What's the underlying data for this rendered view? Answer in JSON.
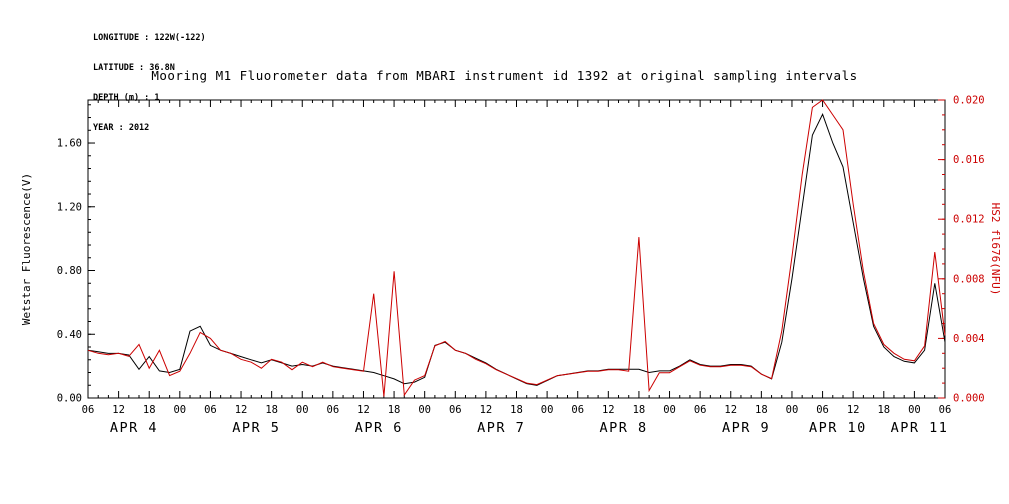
{
  "header": {
    "lines": [
      "LONGITUDE : 122W(-122)",
      "LATITUDE : 36.8N",
      "DEPTH (m) : 1",
      "YEAR : 2012"
    ]
  },
  "title": "Mooring M1 Fluorometer data from MBARI instrument id 1392 at original sampling intervals",
  "chart_data": {
    "type": "line",
    "title": "Mooring M1 Fluorometer data from MBARI instrument id 1392 at original sampling intervals",
    "x_unit": "hours since 2012-04-04 06:00",
    "x_range": [
      0,
      168
    ],
    "x_tick_step_hours": 6,
    "x_tick_labels": [
      "06",
      "12",
      "18",
      "00",
      "06",
      "12",
      "18",
      "00",
      "06",
      "12",
      "18",
      "00",
      "06",
      "12",
      "18",
      "00",
      "06",
      "12",
      "18",
      "00",
      "06",
      "12",
      "18",
      "00",
      "06",
      "12",
      "18",
      "00",
      "06"
    ],
    "day_labels": [
      {
        "label": "APR 4",
        "t": 9
      },
      {
        "label": "APR 5",
        "t": 33
      },
      {
        "label": "APR 6",
        "t": 57
      },
      {
        "label": "APR 7",
        "t": 81
      },
      {
        "label": "APR 8",
        "t": 105
      },
      {
        "label": "APR 9",
        "t": 129
      },
      {
        "label": "APR 10",
        "t": 147
      },
      {
        "label": "APR 11",
        "t": 163
      }
    ],
    "left_axis": {
      "label": "Wetstar Fluorescence(V)",
      "range": [
        0,
        1.87
      ],
      "minor_step": 0.08,
      "color": "#000000",
      "ticks": [
        {
          "v": 0.0,
          "label": "0.00"
        },
        {
          "v": 0.4,
          "label": "0.40"
        },
        {
          "v": 0.8,
          "label": "0.80"
        },
        {
          "v": 1.2,
          "label": "1.20"
        },
        {
          "v": 1.6,
          "label": "1.60"
        }
      ]
    },
    "right_axis": {
      "label": "HS2 fl676(NFU)",
      "range": [
        0,
        0.02
      ],
      "minor_step": 0.001,
      "color": "#cc0000",
      "ticks": [
        {
          "v": 0.0,
          "label": "0.000"
        },
        {
          "v": 0.004,
          "label": "0.004"
        },
        {
          "v": 0.008,
          "label": "0.008"
        },
        {
          "v": 0.012,
          "label": "0.012"
        },
        {
          "v": 0.016,
          "label": "0.016"
        },
        {
          "v": 0.02,
          "label": "0.020"
        }
      ]
    },
    "series": [
      {
        "name": "Wetstar Fluorescence(V)",
        "axis": "left",
        "color": "#000000",
        "x_step_hours": 2,
        "values": [
          0.3,
          0.29,
          0.28,
          0.28,
          0.27,
          0.18,
          0.26,
          0.17,
          0.16,
          0.18,
          0.42,
          0.45,
          0.33,
          0.3,
          0.28,
          0.26,
          0.24,
          0.22,
          0.24,
          0.22,
          0.2,
          0.21,
          0.2,
          0.22,
          0.2,
          0.19,
          0.18,
          0.17,
          0.16,
          0.14,
          0.12,
          0.09,
          0.1,
          0.13,
          0.33,
          0.35,
          0.3,
          0.28,
          0.25,
          0.22,
          0.18,
          0.15,
          0.12,
          0.09,
          0.08,
          0.11,
          0.14,
          0.15,
          0.16,
          0.17,
          0.17,
          0.18,
          0.18,
          0.18,
          0.18,
          0.16,
          0.17,
          0.17,
          0.2,
          0.24,
          0.21,
          0.2,
          0.2,
          0.21,
          0.21,
          0.2,
          0.15,
          0.12,
          0.35,
          0.75,
          1.2,
          1.65,
          1.78,
          1.6,
          1.45,
          1.1,
          0.75,
          0.45,
          0.32,
          0.26,
          0.23,
          0.22,
          0.3,
          0.72,
          0.35
        ]
      },
      {
        "name": "HS2 fl676(NFU)",
        "axis": "right",
        "color": "#cc0000",
        "x_step_hours": 2,
        "values": [
          0.0032,
          0.003,
          0.0029,
          0.003,
          0.0028,
          0.0036,
          0.002,
          0.0032,
          0.0015,
          0.0018,
          0.003,
          0.0044,
          0.004,
          0.0032,
          0.003,
          0.0026,
          0.0024,
          0.002,
          0.0026,
          0.0024,
          0.0019,
          0.0024,
          0.0021,
          0.0024,
          0.0021,
          0.002,
          0.0019,
          0.0018,
          0.007,
          0.0001,
          0.0085,
          0.0002,
          0.0012,
          0.0015,
          0.0035,
          0.0038,
          0.0032,
          0.003,
          0.0026,
          0.0023,
          0.0019,
          0.0016,
          0.0013,
          0.001,
          0.0009,
          0.0012,
          0.0015,
          0.0016,
          0.0017,
          0.0018,
          0.0018,
          0.0019,
          0.0019,
          0.0018,
          0.0108,
          0.0005,
          0.0017,
          0.0017,
          0.0021,
          0.0025,
          0.0022,
          0.0021,
          0.0021,
          0.0022,
          0.0022,
          0.0021,
          0.0016,
          0.0013,
          0.0045,
          0.0095,
          0.015,
          0.0195,
          0.02,
          0.019,
          0.018,
          0.013,
          0.0085,
          0.005,
          0.0036,
          0.003,
          0.0026,
          0.0025,
          0.0035,
          0.0098,
          0.0042
        ]
      }
    ]
  }
}
